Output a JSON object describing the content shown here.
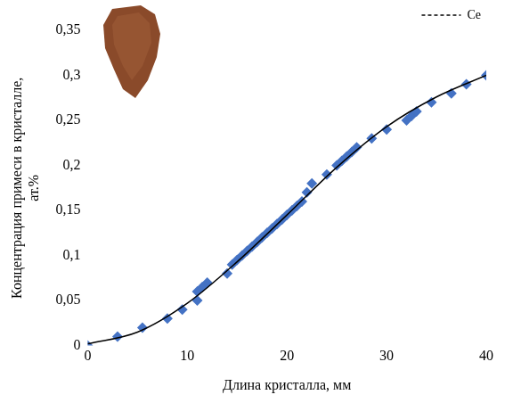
{
  "chart_data": {
    "type": "scatter",
    "x_label": "Длина кристалла, мм",
    "y_label": "Концентрация примеси в кристалле, ат.%",
    "xlim": [
      0,
      40
    ],
    "xticks": [
      0,
      10,
      20,
      30,
      40
    ],
    "ylim": [
      0,
      0.35
    ],
    "yticks": [
      0,
      {
        "value": 0.05,
        "label": "0,05"
      },
      {
        "value": 0.1,
        "label": "0,1"
      },
      {
        "value": 0.15,
        "label": "0,15"
      },
      {
        "value": 0.2,
        "label": "0,2"
      },
      {
        "value": 0.25,
        "label": "0,25"
      },
      {
        "value": 0.3,
        "label": "0,3"
      },
      {
        "value": 0.35,
        "label": "0,35"
      }
    ],
    "grid": false,
    "legend": "upper right",
    "series": [
      {
        "type": "scatter",
        "marker": "diamond",
        "color": "#4472c4",
        "x": [
          0,
          3,
          5.5,
          8,
          9.5,
          11,
          11,
          11.5,
          12,
          14,
          14.5,
          15,
          15.5,
          16,
          16.5,
          17,
          17.5,
          18,
          18.5,
          19,
          19.5,
          20,
          20.5,
          21,
          21.5,
          22,
          22.5,
          24,
          25,
          25.5,
          26,
          26.5,
          27,
          28.5,
          30,
          32,
          32.5,
          33,
          34.5,
          36.5,
          38,
          40
        ],
        "values": [
          0,
          0.01,
          0.02,
          0.03,
          0.04,
          0.05,
          0.06,
          0.065,
          0.07,
          0.08,
          0.09,
          0.095,
          0.1,
          0.105,
          0.11,
          0.115,
          0.12,
          0.125,
          0.13,
          0.135,
          0.14,
          0.145,
          0.15,
          0.155,
          0.16,
          0.17,
          0.18,
          0.19,
          0.2,
          0.205,
          0.21,
          0.215,
          0.22,
          0.23,
          0.24,
          0.25,
          0.255,
          0.26,
          0.27,
          0.28,
          0.29,
          0.3
        ]
      },
      {
        "name": "Ce",
        "type": "line",
        "line_style": "solid",
        "color": "#000000",
        "x": [
          0,
          5,
          10,
          15,
          20,
          25,
          30,
          35,
          40
        ],
        "values": [
          0.002,
          0.015,
          0.047,
          0.093,
          0.145,
          0.198,
          0.243,
          0.276,
          0.3
        ]
      }
    ]
  }
}
